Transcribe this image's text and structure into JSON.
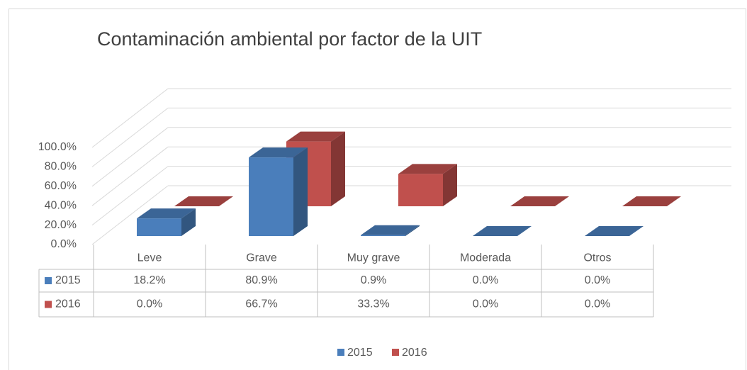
{
  "chart_data": {
    "type": "bar3d",
    "title": "Contaminación ambiental por factor de la UIT",
    "categories": [
      "Leve",
      "Grave",
      "Muy grave",
      "Moderada",
      "Otros"
    ],
    "series": [
      {
        "name": "2015",
        "color": "#4a7ebb",
        "values": [
          18.2,
          80.9,
          0.9,
          0,
          0
        ],
        "value_labels": [
          "18.2%",
          "80.9%",
          "0.9%",
          "0.0%",
          "0.0%"
        ]
      },
      {
        "name": "2016",
        "color": "#c0504d",
        "values": [
          0,
          66.7,
          33.3,
          0,
          0
        ],
        "value_labels": [
          "0.0%",
          "66.7%",
          "33.3%",
          "0.0%",
          "0.0%"
        ]
      }
    ],
    "ylim": [
      0,
      100
    ],
    "yticks": [
      {
        "value": 0,
        "label": "0.0%"
      },
      {
        "value": 20,
        "label": "20.0%"
      },
      {
        "value": 40,
        "label": "40.0%"
      },
      {
        "value": 60,
        "label": "60.0%"
      },
      {
        "value": 80,
        "label": "80.0%"
      },
      {
        "value": 100,
        "label": "100.0%"
      }
    ],
    "grid": true,
    "legend": "bottom"
  }
}
